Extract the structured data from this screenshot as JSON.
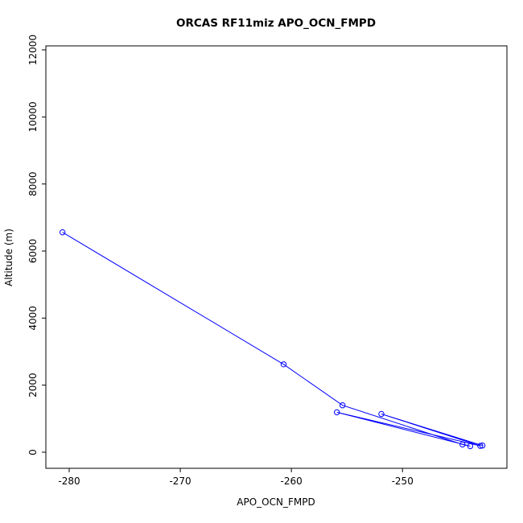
{
  "chart": {
    "title": "ORCAS RF11miz APO_OCN_FMPD",
    "xlabel": "APO_OCN_FMPD",
    "ylabel": "Altitude (m)"
  },
  "chart_data": {
    "type": "line",
    "title": "ORCAS RF11miz APO_OCN_FMPD",
    "xlabel": "APO_OCN_FMPD",
    "ylabel": "Altitude (m)",
    "xlim": [
      -282.1,
      -240.6
    ],
    "ylim": [
      -480,
      12120
    ],
    "x_ticks": [
      -280,
      -270,
      -260,
      -250
    ],
    "y_ticks": [
      0,
      2000,
      4000,
      6000,
      8000,
      10000,
      12000
    ],
    "grid": false,
    "legend": "none",
    "marker": "open-circle",
    "color": "#0000ff",
    "points": [
      [
        -280.6,
        6560
      ],
      [
        -260.7,
        2620
      ],
      [
        -255.4,
        1400
      ],
      [
        -244.6,
        230
      ],
      [
        -243.9,
        180
      ],
      [
        -255.9,
        1190
      ],
      [
        -243.0,
        190
      ],
      [
        -251.9,
        1140
      ],
      [
        -242.8,
        200
      ]
    ]
  }
}
